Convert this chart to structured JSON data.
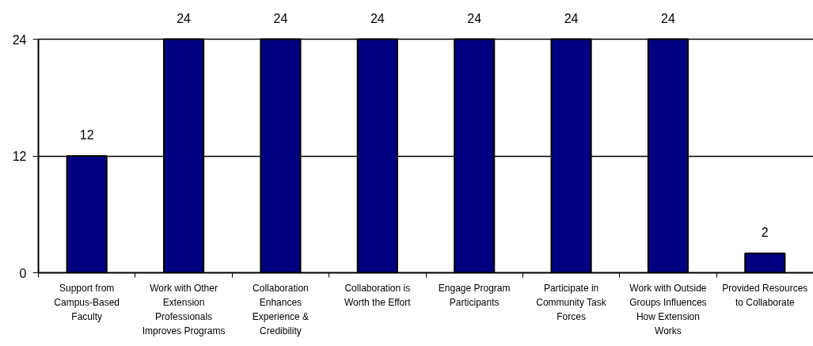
{
  "chart_data": {
    "type": "bar",
    "categories": [
      "Support from Campus-Based Faculty",
      "Work with Other Extension Professionals Improves Programs",
      "Collaboration Enhances Experience & Credibility",
      "Collaboration is Worth the Effort",
      "Engage Program Participants",
      "Participate in Community Task Forces",
      "Work with Outside Groups Influences How Extension Works",
      "Provided Resources to Collaborate"
    ],
    "values": [
      12,
      24,
      24,
      24,
      24,
      24,
      24,
      2
    ],
    "color": "#000080",
    "ylim": [
      0,
      24
    ],
    "yticks": [
      0,
      12,
      24
    ],
    "grid": "y",
    "data_labels": true
  }
}
